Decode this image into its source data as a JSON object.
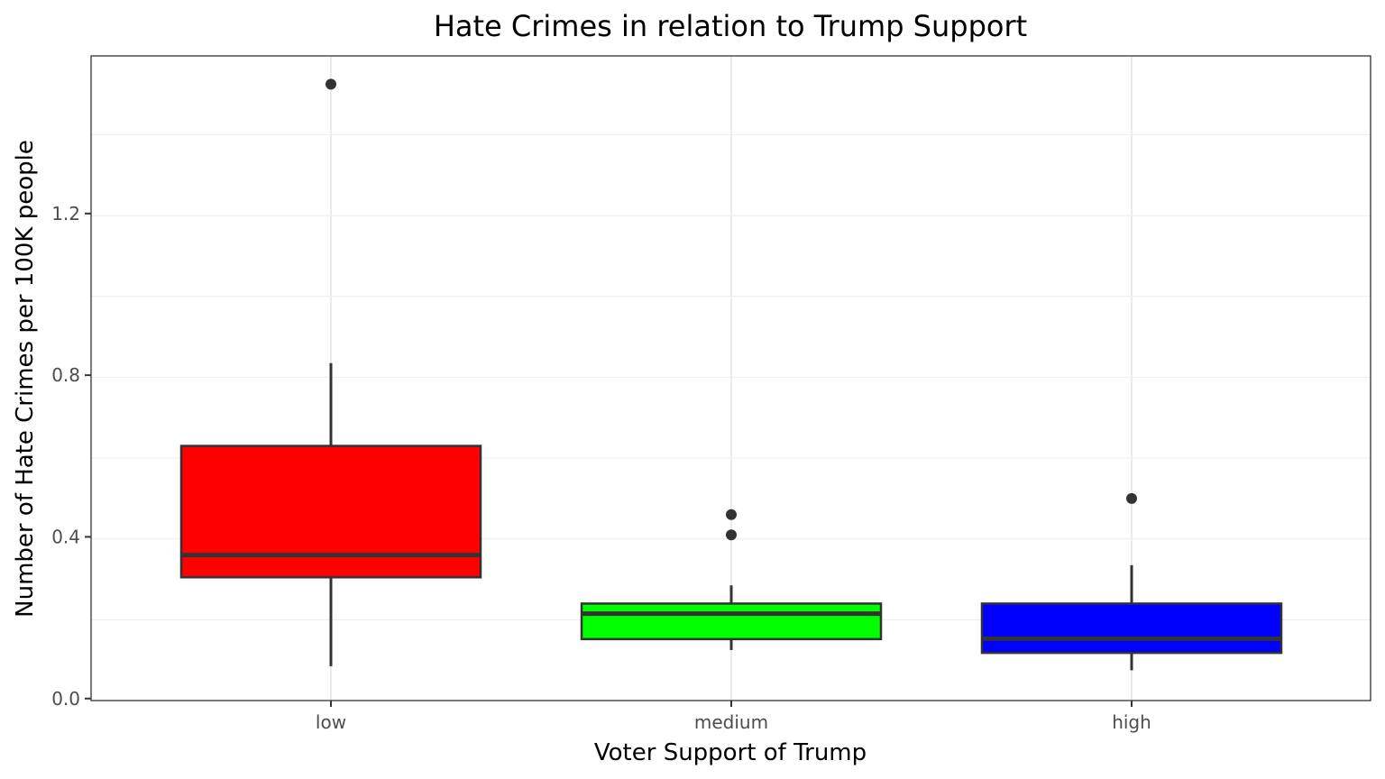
{
  "chart_data": {
    "type": "boxplot",
    "title": "Hate Crimes in relation to Trump Support",
    "xlabel": "Voter Support of Trump",
    "ylabel": "Number of Hate Crimes per 100K people",
    "ylim": [
      -0.005,
      1.59
    ],
    "yticks": [
      0.0,
      0.4,
      0.8,
      1.2
    ],
    "ytick_labels": [
      "0.0",
      "0.4",
      "0.8",
      "1.2"
    ],
    "grid": true,
    "legend": "none",
    "categories": [
      "low",
      "medium",
      "high"
    ],
    "boxes": [
      {
        "category": "low",
        "color": "#ff0000",
        "whisker_low": 0.08,
        "q1": 0.3,
        "median": 0.355,
        "q3": 0.625,
        "whisker_high": 0.83,
        "outliers": [
          1.52
        ]
      },
      {
        "category": "medium",
        "color": "#00ff00",
        "whisker_low": 0.12,
        "q1": 0.147,
        "median": 0.21,
        "q3": 0.235,
        "whisker_high": 0.28,
        "outliers": [
          0.455,
          0.405
        ]
      },
      {
        "category": "high",
        "color": "#0000ff",
        "whisker_low": 0.07,
        "q1": 0.113,
        "median": 0.148,
        "q3": 0.235,
        "whisker_high": 0.33,
        "outliers": [
          0.495
        ]
      }
    ]
  }
}
